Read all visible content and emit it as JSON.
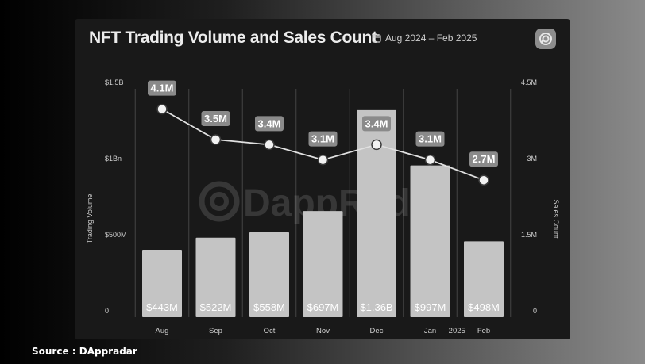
{
  "header": {
    "title": "NFT Trading Volume and Sales Count",
    "date_range": "Aug 2024 – Feb 2025",
    "date_icon": "calendar-icon",
    "brand_icon": "dappradar-logo-icon"
  },
  "watermark": "DappRadar",
  "source": "Source : DAppradar",
  "colors": {
    "bar": "#c4c4c4",
    "line": "#e0e0e0",
    "label_bg": "#8a8a8a",
    "grid": "#444444",
    "text": "#cfcfcf"
  },
  "chart_data": {
    "type": "bar",
    "title": "NFT Trading Volume and Sales Count",
    "categories": [
      "Aug",
      "Sep",
      "Oct",
      "Nov",
      "Dec",
      "Jan",
      "Feb"
    ],
    "year_marker": "2025",
    "ylabel": "Trading Volume",
    "y2label": "Sales Count",
    "ylim": [
      0,
      1500000000
    ],
    "y2lim": [
      0,
      4500000
    ],
    "yticks": [
      {
        "value": 0,
        "label": "0"
      },
      {
        "value": 500000000,
        "label": "$500M"
      },
      {
        "value": 1000000000,
        "label": "$1Bn"
      },
      {
        "value": 1500000000,
        "label": "$1.5B"
      }
    ],
    "y2ticks": [
      {
        "value": 0,
        "label": "0"
      },
      {
        "value": 1500000,
        "label": "1.5M"
      },
      {
        "value": 3000000,
        "label": "3M"
      },
      {
        "value": 4500000,
        "label": "4.5M"
      }
    ],
    "series": [
      {
        "name": "Trading Volume",
        "kind": "bar",
        "axis": "left",
        "values": [
          443000000,
          522000000,
          558000000,
          697000000,
          1360000000,
          997000000,
          498000000
        ],
        "labels": [
          "$443M",
          "$522M",
          "$558M",
          "$697M",
          "$1.36B",
          "$997M",
          "$498M"
        ]
      },
      {
        "name": "Sales Count",
        "kind": "line",
        "axis": "right",
        "values": [
          4100000,
          3500000,
          3400000,
          3100000,
          3400000,
          3100000,
          2700000
        ],
        "labels": [
          "4.1M",
          "3.5M",
          "3.4M",
          "3.1M",
          "3.4M",
          "3.1M",
          "2.7M"
        ]
      }
    ],
    "grid": "vertical",
    "legend": "none"
  }
}
